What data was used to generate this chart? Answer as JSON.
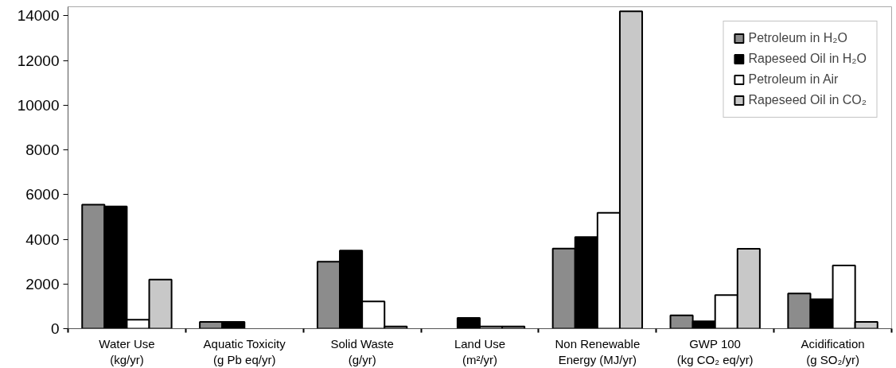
{
  "chart_data": {
    "type": "bar",
    "categories": [
      "Water Use\n(kg/yr)",
      "Aquatic Toxicity\n(g Pb eq/yr)",
      "Solid Waste\n(g/yr)",
      "Land Use\n(m²/yr)",
      "Non Renewable\nEnergy (MJ/yr)",
      "GWP 100\n(kg CO₂ eq/yr)",
      "Acidification\n(g SO₂/yr)"
    ],
    "series": [
      {
        "name": "Petroleum in H₂O",
        "color": "#8c8c8c",
        "values": [
          5550,
          300,
          3000,
          null,
          3580,
          600,
          1570
        ]
      },
      {
        "name": "Rapeseed Oil in H₂O",
        "color": "#000000",
        "values": [
          5470,
          300,
          3490,
          480,
          4100,
          330,
          1320
        ]
      },
      {
        "name": "Petroleum in Air",
        "color": "#ffffff",
        "values": [
          400,
          null,
          1220,
          100,
          5180,
          1500,
          2830
        ]
      },
      {
        "name": "Rapeseed Oil in CO₂",
        "color": "#c8c8c8",
        "values": [
          2200,
          null,
          100,
          100,
          14200,
          3570,
          300
        ]
      }
    ],
    "ylim": [
      0,
      14400
    ],
    "yticks": [
      0,
      2000,
      4000,
      6000,
      8000,
      10000,
      12000,
      14000
    ],
    "grid": false,
    "legend": "top right"
  }
}
